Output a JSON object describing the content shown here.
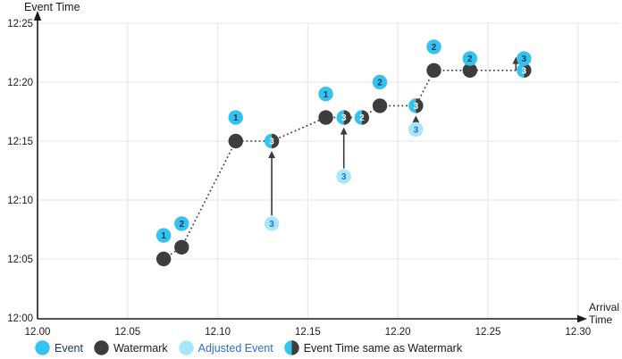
{
  "figure": {
    "y_axis_title": "Event Time",
    "x_axis_title_line1": "Arrival",
    "x_axis_title_line2": "Time"
  },
  "colors": {
    "event_fill": "#33C3EE",
    "event_text": "#16365D",
    "watermark_fill": "#3D3D3D",
    "watermark_text": "#FFFFFF",
    "adjusted_fill": "#A8E6F9",
    "adjusted_text": "#2E6ED4",
    "line": "#3D3D3D",
    "arrow": "#3A3A3A",
    "grid": "#E9E9E9",
    "axis": "#1A1A1A",
    "tick_text": "#1A1A1A",
    "legend_event_text": "#16365D",
    "legend_watermark_text": "#1A1A1A",
    "legend_adjusted_text": "#2E6ED4",
    "legend_same_text": "#1A1A1A"
  },
  "legend": [
    {
      "type": "event",
      "label": "Event"
    },
    {
      "type": "watermark",
      "label": "Watermark"
    },
    {
      "type": "adjusted",
      "label": "Adjusted Event"
    },
    {
      "type": "same",
      "label": "Event Time same as Watermark"
    }
  ],
  "chart_data": {
    "type": "scatter",
    "xlabel": "Arrival Time",
    "ylabel": "Event Time",
    "x_range": [
      12.0,
      12.3
    ],
    "y_range_minutes": [
      0,
      25
    ],
    "grid": true,
    "legend_position": "bottom",
    "x_ticks": {
      "values": [
        12.0,
        12.05,
        12.1,
        12.15,
        12.2,
        12.25,
        12.3
      ],
      "labels": [
        "12.00",
        "12.05",
        "12.10",
        "12.15",
        "12.20",
        "12.25",
        "12.30"
      ]
    },
    "y_ticks": {
      "minutes": [
        0,
        5,
        10,
        15,
        20,
        25
      ],
      "labels": [
        "12:00",
        "12:05",
        "12:10",
        "12:15",
        "12:20",
        "12:25"
      ]
    },
    "events": [
      {
        "arrival": 12.07,
        "event_min": 7,
        "event_time": "12:07",
        "label": "1"
      },
      {
        "arrival": 12.08,
        "event_min": 8,
        "event_time": "12:08",
        "label": "2"
      },
      {
        "arrival": 12.11,
        "event_min": 17,
        "event_time": "12:17",
        "label": "1"
      },
      {
        "arrival": 12.16,
        "event_min": 19,
        "event_time": "12:19",
        "label": "1"
      },
      {
        "arrival": 12.19,
        "event_min": 20,
        "event_time": "12:20",
        "label": "2"
      },
      {
        "arrival": 12.22,
        "event_min": 23,
        "event_time": "12:23",
        "label": "2"
      },
      {
        "arrival": 12.24,
        "event_min": 22,
        "event_time": "12:22",
        "label": "2"
      },
      {
        "arrival": 12.27,
        "event_min": 22,
        "event_time": "12:22",
        "label": "3"
      }
    ],
    "watermarks": [
      {
        "arrival": 12.07,
        "event_min": 5,
        "event_time": "12:05"
      },
      {
        "arrival": 12.08,
        "event_min": 6,
        "event_time": "12:06"
      },
      {
        "arrival": 12.11,
        "event_min": 15,
        "event_time": "12:15"
      },
      {
        "arrival": 12.16,
        "event_min": 17,
        "event_time": "12:17"
      },
      {
        "arrival": 12.19,
        "event_min": 18,
        "event_time": "12:18"
      },
      {
        "arrival": 12.22,
        "event_min": 21,
        "event_time": "12:21"
      },
      {
        "arrival": 12.24,
        "event_min": 21,
        "event_time": "12:21"
      }
    ],
    "same_as_watermark": [
      {
        "arrival": 12.13,
        "event_min": 15,
        "event_time": "12:15",
        "label": "3"
      },
      {
        "arrival": 12.17,
        "event_min": 17,
        "event_time": "12:17",
        "label": "3"
      },
      {
        "arrival": 12.18,
        "event_min": 17,
        "event_time": "12:17",
        "label": "2"
      },
      {
        "arrival": 12.21,
        "event_min": 18,
        "event_time": "12:18",
        "label": "3"
      },
      {
        "arrival": 12.27,
        "event_min": 21,
        "event_time": "12:21",
        "label": "3"
      }
    ],
    "adjusted_events": [
      {
        "arrival": 12.13,
        "event_min": 8,
        "event_time": "12:08",
        "label": "3"
      },
      {
        "arrival": 12.17,
        "event_min": 12,
        "event_time": "12:12",
        "label": "3"
      },
      {
        "arrival": 12.21,
        "event_min": 16,
        "event_time": "12:16",
        "label": "3"
      }
    ],
    "watermark_line": [
      [
        12.07,
        5
      ],
      [
        12.08,
        6
      ],
      [
        12.11,
        15
      ],
      [
        12.13,
        15
      ],
      [
        12.16,
        17
      ],
      [
        12.17,
        17
      ],
      [
        12.18,
        17
      ],
      [
        12.19,
        18
      ],
      [
        12.21,
        18
      ],
      [
        12.22,
        21
      ],
      [
        12.24,
        21
      ],
      [
        12.27,
        21
      ]
    ],
    "adjustment_arrows": [
      {
        "x": 12.13,
        "from_min": 8,
        "to_min": 15,
        "dx": 0
      },
      {
        "x": 12.17,
        "from_min": 12,
        "to_min": 17,
        "dx": 0
      },
      {
        "x": 12.21,
        "from_min": 16,
        "to_min": 18,
        "dx": 0
      },
      {
        "x": 12.27,
        "from_min": 21,
        "to_min": 22,
        "dx": -9
      }
    ]
  }
}
